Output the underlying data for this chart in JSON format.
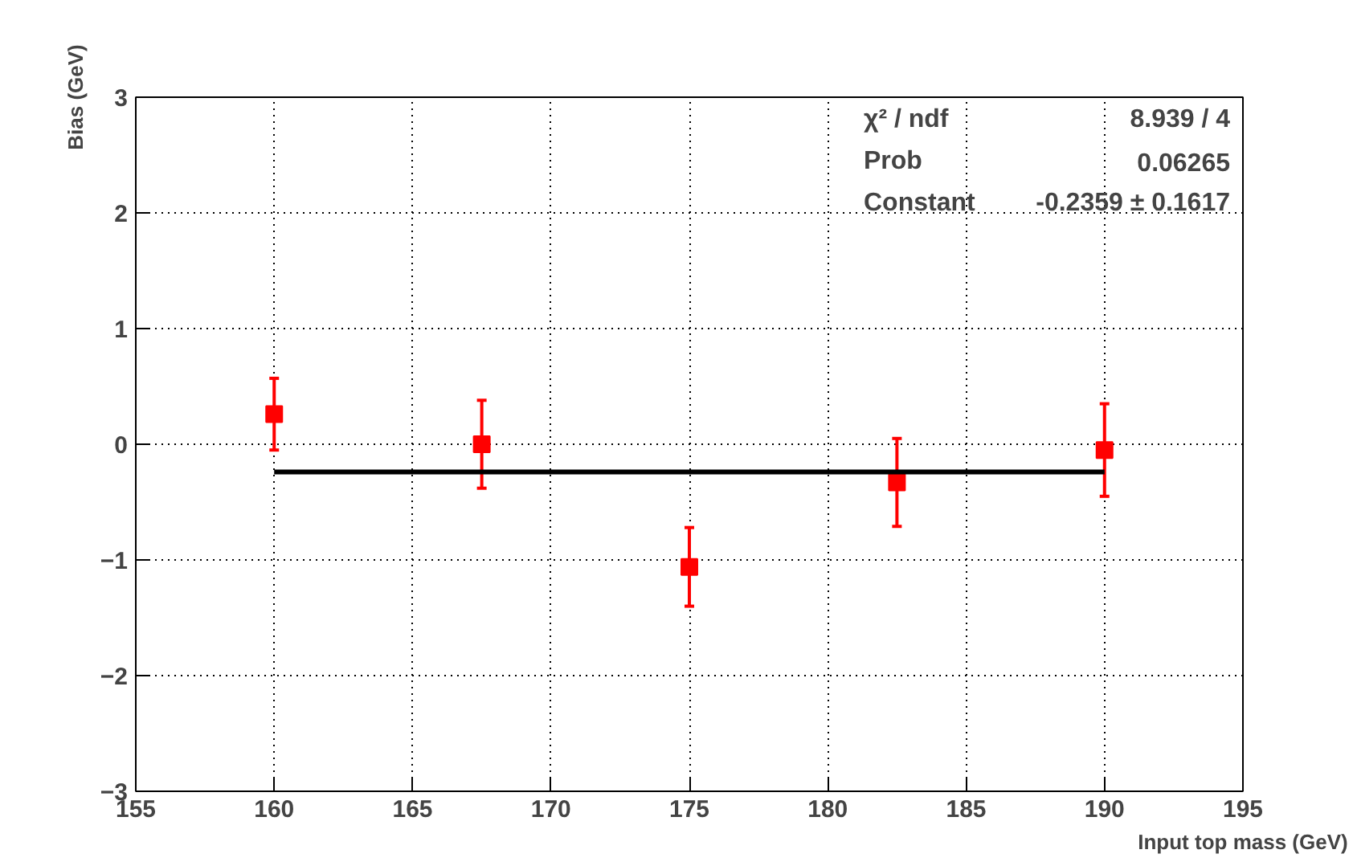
{
  "chart_data": {
    "type": "scatter",
    "xlabel": "Input top mass (GeV)",
    "ylabel": "Bias (GeV)",
    "xlim": [
      155,
      195
    ],
    "ylim": [
      -3,
      3
    ],
    "xticks": [
      155,
      160,
      165,
      170,
      175,
      180,
      185,
      190,
      195
    ],
    "yticks": [
      -3,
      -2,
      -1,
      0,
      1,
      2,
      3
    ],
    "grid": true,
    "marker": "square",
    "series": [
      {
        "color": "#ff0000",
        "x": [
          160,
          167.5,
          175,
          182.5,
          190
        ],
        "values": [
          0.26,
          0.0,
          -1.06,
          -0.33,
          -0.05
        ],
        "errors": [
          0.31,
          0.38,
          0.34,
          0.38,
          0.4
        ]
      },
      {
        "type": "line",
        "marker": "none",
        "color": "#000000",
        "x": [
          160,
          190
        ],
        "values": [
          -0.24,
          -0.24
        ]
      }
    ],
    "annotations": [
      "χ² / ndf",
      "8.939 / 4",
      "Prob",
      "0.06265",
      "Constant",
      "-0.2359 ± 0.1617"
    ]
  }
}
